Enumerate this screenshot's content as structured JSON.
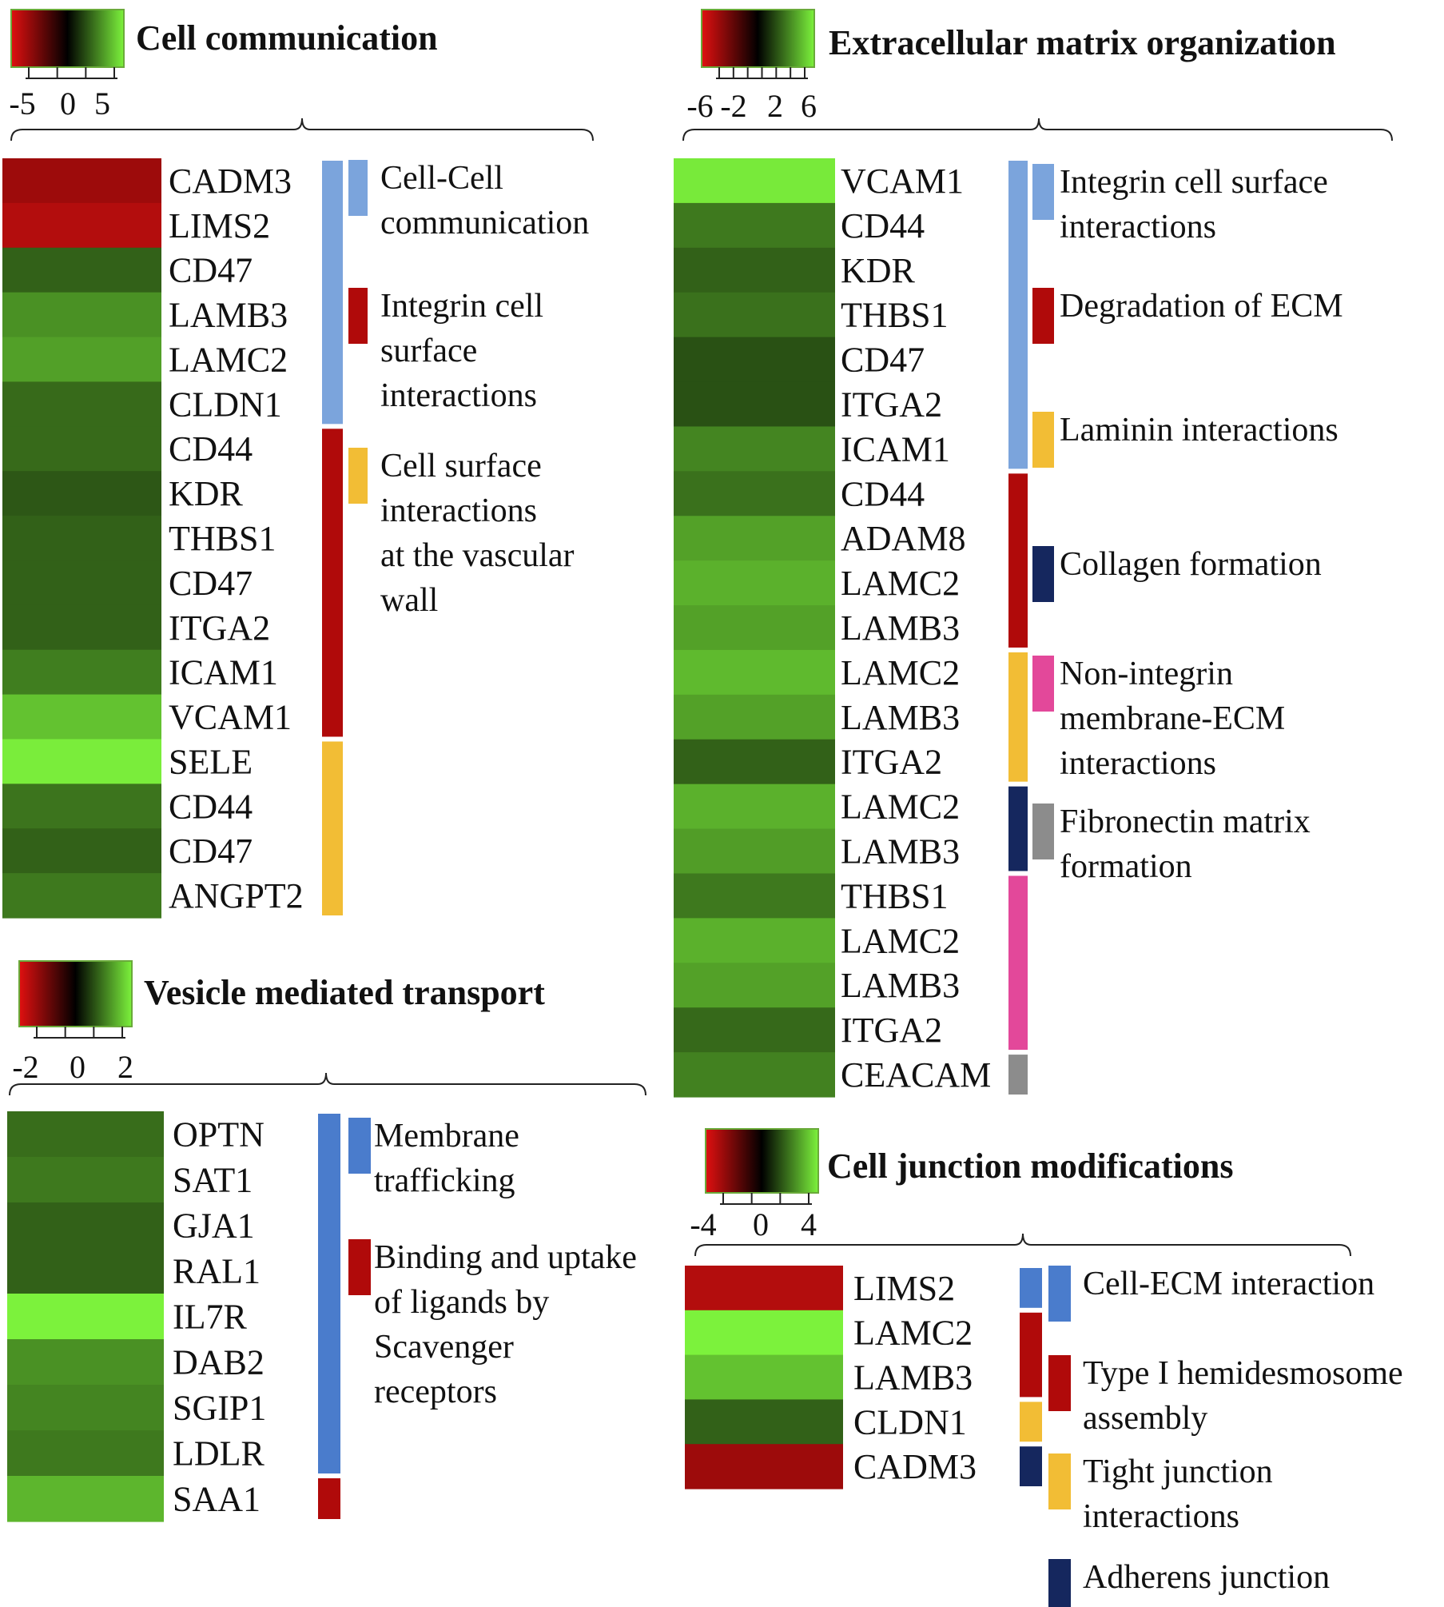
{
  "chart_data": [
    {
      "type": "heatmap",
      "title": "Cell communication",
      "color_scale": {
        "low": "#e01010",
        "mid": "#000000",
        "high": "#7cf23c"
      },
      "scale_ticks": [
        "-5",
        "0",
        "5"
      ],
      "vmin": -5,
      "vmax": 5,
      "genes": [
        "CADM3",
        "LIMS2",
        "CD47",
        "LAMB3",
        "LAMC2",
        "CLDN1",
        "CD44",
        "KDR",
        "THBS1",
        "CD47",
        "ITGA2",
        "ICAM1",
        "VCAM1",
        "SELE",
        "CD44",
        "CD47",
        "ANGPT2"
      ],
      "values": [
        -3.5,
        -4.0,
        2.0,
        3.0,
        3.3,
        2.2,
        2.2,
        1.8,
        2.0,
        2.0,
        2.0,
        2.6,
        4.0,
        4.9,
        2.4,
        2.0,
        2.5
      ],
      "pathways": [
        {
          "name": "Cell-Cell communication",
          "lines": [
            "Cell-Cell",
            "communication"
          ],
          "color": "#7ba4dc",
          "start": 0,
          "end": 6
        },
        {
          "name": "Integrin cell surface interactions",
          "lines": [
            "Integrin cell",
            "surface",
            "interactions"
          ],
          "color": "#b00a0a",
          "start": 6,
          "end": 13
        },
        {
          "name": "Cell surface interactions at the vascular wall",
          "lines": [
            "Cell surface",
            "interactions",
            "at the vascular",
            "wall"
          ],
          "color": "#f2bd35",
          "start": 13,
          "end": 17
        }
      ]
    },
    {
      "type": "heatmap",
      "title": "Extracellular matrix organization",
      "color_scale": {
        "low": "#e01010",
        "mid": "#000000",
        "high": "#7cf23c"
      },
      "scale_ticks": [
        "-6",
        "-2",
        "2",
        "6"
      ],
      "vmin": -6,
      "vmax": 6,
      "genes": [
        "VCAM1",
        "CD44",
        "KDR",
        "THBS1",
        "CD47",
        "ITGA2",
        "ICAM1",
        "CD44",
        "ADAM8",
        "LAMC2",
        "LAMB3",
        "LAMC2",
        "LAMB3",
        "ITGA2",
        "LAMC2",
        "LAMB3",
        "THBS1",
        "LAMC2",
        "LAMB3",
        "ITGA2",
        "CEACAM"
      ],
      "values": [
        5.8,
        3.0,
        2.4,
        2.8,
        2.0,
        2.0,
        3.3,
        2.8,
        4.0,
        4.4,
        4.0,
        4.6,
        4.0,
        2.4,
        4.4,
        3.9,
        3.0,
        4.4,
        4.0,
        2.6,
        3.2
      ],
      "pathways": [
        {
          "name": "Integrin cell surface interactions",
          "lines": [
            "Integrin cell surface",
            "interactions"
          ],
          "color": "#7ba4dc",
          "start": 0,
          "end": 7
        },
        {
          "name": "Degradation of ECM",
          "lines": [
            "Degradation of ECM"
          ],
          "color": "#b00a0a",
          "start": 7,
          "end": 11
        },
        {
          "name": "Laminin interactions",
          "lines": [
            "Laminin interactions"
          ],
          "color": "#f2bd35",
          "start": 11,
          "end": 14
        },
        {
          "name": "Collagen formation",
          "lines": [
            "Collagen formation"
          ],
          "color": "#15275e",
          "start": 14,
          "end": 16
        },
        {
          "name": "Non-integrin membrane-ECM interactions",
          "lines": [
            "Non-integrin",
            "membrane-ECM",
            "interactions"
          ],
          "color": "#e3489a",
          "start": 16,
          "end": 20
        },
        {
          "name": "Fibronectin matrix formation",
          "lines": [
            "Fibronectin matrix",
            "formation"
          ],
          "color": "#8c8c8c",
          "start": 20,
          "end": 21
        }
      ]
    },
    {
      "type": "heatmap",
      "title": "Vesicle mediated transport",
      "color_scale": {
        "low": "#e01010",
        "mid": "#000000",
        "high": "#7cf23c"
      },
      "scale_ticks": [
        "-2",
        "0",
        "2"
      ],
      "vmin": -2,
      "vmax": 2,
      "genes": [
        "OPTN",
        "SAT1",
        "GJA1",
        "RAL1",
        "IL7R",
        "DAB2",
        "SGIP1",
        "LDLR",
        "SAA1"
      ],
      "values": [
        0.9,
        1.0,
        0.8,
        0.8,
        2.0,
        1.2,
        1.1,
        1.0,
        1.5
      ],
      "pathways": [
        {
          "name": "Membrane trafficking",
          "lines": [
            "Membrane",
            "trafficking"
          ],
          "color": "#4a7ccc",
          "start": 0,
          "end": 8
        },
        {
          "name": "Binding and uptake of ligands by Scavenger receptors",
          "lines": [
            "Binding and uptake",
            "of ligands by",
            "Scavenger",
            "receptors"
          ],
          "color": "#b00a0a",
          "start": 8,
          "end": 9
        }
      ]
    },
    {
      "type": "heatmap",
      "title": "Cell junction modifications",
      "color_scale": {
        "low": "#e01010",
        "mid": "#000000",
        "high": "#7cf23c"
      },
      "scale_ticks": [
        "-4",
        "0",
        "4"
      ],
      "vmin": -4,
      "vmax": 4,
      "genes": [
        "LIMS2",
        "LAMC2",
        "LAMB3",
        "CLDN1",
        "CADM3"
      ],
      "values": [
        -3.2,
        4.0,
        3.2,
        1.6,
        -2.8
      ],
      "pathways": [
        {
          "name": "Cell-ECM interaction",
          "lines": [
            "Cell-ECM interaction"
          ],
          "color": "#4a7ccc",
          "start": 0,
          "end": 1
        },
        {
          "name": "Type I hemidesmosome assembly",
          "lines": [
            "Type I hemidesmosome",
            "assembly"
          ],
          "color": "#b00a0a",
          "start": 1,
          "end": 3
        },
        {
          "name": "Tight junction interactions",
          "lines": [
            "Tight junction",
            "interactions"
          ],
          "color": "#f2bd35",
          "start": 3,
          "end": 4
        },
        {
          "name": "Adherens junction",
          "lines": [
            "Adherens junction"
          ],
          "color": "#15275e",
          "start": 4,
          "end": 5
        }
      ]
    }
  ]
}
